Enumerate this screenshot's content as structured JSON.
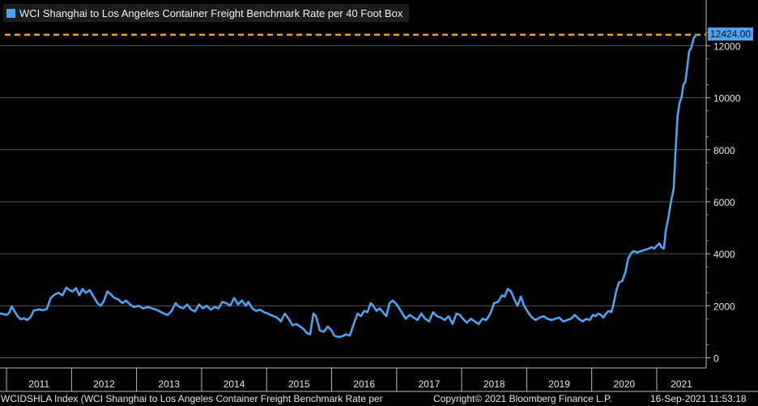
{
  "chart_data": {
    "type": "line",
    "title": "WCI Shanghai to Los Angeles Container Freight Benchmark Rate per 40 Foot Box",
    "ylim": [
      0,
      13000
    ],
    "yticks": [
      0,
      2000,
      4000,
      6000,
      8000,
      10000,
      12000
    ],
    "xlim": [
      2010.9,
      2021.76
    ],
    "year_labels": [
      "2011",
      "2012",
      "2013",
      "2014",
      "2015",
      "2016",
      "2017",
      "2018",
      "2019",
      "2020",
      "2021"
    ],
    "grid": true,
    "legend_position": "top-left",
    "last_value_label": "12424.00",
    "reference_line_value": 12424,
    "colors": {
      "line": "#4da3f2",
      "reference": "#f29b30",
      "background": "#000000",
      "grid": "#555555"
    },
    "series": [
      {
        "name": "WCI Shanghai to Los Angeles Container Freight Benchmark Rate per 40 Foot Box",
        "points": [
          [
            2010.91,
            1700
          ],
          [
            2010.95,
            1680
          ],
          [
            2011.0,
            1650
          ],
          [
            2011.04,
            1720
          ],
          [
            2011.08,
            1980
          ],
          [
            2011.12,
            1800
          ],
          [
            2011.17,
            1600
          ],
          [
            2011.22,
            1480
          ],
          [
            2011.27,
            1520
          ],
          [
            2011.32,
            1450
          ],
          [
            2011.37,
            1560
          ],
          [
            2011.42,
            1820
          ],
          [
            2011.5,
            1860
          ],
          [
            2011.56,
            1830
          ],
          [
            2011.62,
            1880
          ],
          [
            2011.68,
            2300
          ],
          [
            2011.75,
            2450
          ],
          [
            2011.8,
            2500
          ],
          [
            2011.86,
            2400
          ],
          [
            2011.92,
            2700
          ],
          [
            2011.97,
            2600
          ],
          [
            2012.02,
            2550
          ],
          [
            2012.07,
            2680
          ],
          [
            2012.12,
            2400
          ],
          [
            2012.17,
            2650
          ],
          [
            2012.22,
            2500
          ],
          [
            2012.28,
            2600
          ],
          [
            2012.34,
            2350
          ],
          [
            2012.4,
            2100
          ],
          [
            2012.45,
            2000
          ],
          [
            2012.5,
            2200
          ],
          [
            2012.55,
            2550
          ],
          [
            2012.6,
            2450
          ],
          [
            2012.66,
            2300
          ],
          [
            2012.72,
            2250
          ],
          [
            2012.78,
            2100
          ],
          [
            2012.84,
            2200
          ],
          [
            2012.9,
            2050
          ],
          [
            2012.96,
            1950
          ],
          [
            2013.03,
            2000
          ],
          [
            2013.1,
            1900
          ],
          [
            2013.17,
            1950
          ],
          [
            2013.24,
            1900
          ],
          [
            2013.3,
            1850
          ],
          [
            2013.36,
            1780
          ],
          [
            2013.42,
            1700
          ],
          [
            2013.48,
            1650
          ],
          [
            2013.54,
            1800
          ],
          [
            2013.6,
            2100
          ],
          [
            2013.66,
            1950
          ],
          [
            2013.72,
            1900
          ],
          [
            2013.78,
            2050
          ],
          [
            2013.84,
            1850
          ],
          [
            2013.9,
            1780
          ],
          [
            2013.96,
            2050
          ],
          [
            2014.02,
            1900
          ],
          [
            2014.08,
            2000
          ],
          [
            2014.14,
            1850
          ],
          [
            2014.2,
            1950
          ],
          [
            2014.26,
            1900
          ],
          [
            2014.32,
            2150
          ],
          [
            2014.38,
            2100
          ],
          [
            2014.44,
            2000
          ],
          [
            2014.5,
            2300
          ],
          [
            2014.56,
            2050
          ],
          [
            2014.62,
            2200
          ],
          [
            2014.68,
            2000
          ],
          [
            2014.72,
            2150
          ],
          [
            2014.78,
            1900
          ],
          [
            2014.84,
            1800
          ],
          [
            2014.9,
            1850
          ],
          [
            2014.96,
            1750
          ],
          [
            2015.02,
            1700
          ],
          [
            2015.06,
            1650
          ],
          [
            2015.11,
            1600
          ],
          [
            2015.16,
            1550
          ],
          [
            2015.22,
            1400
          ],
          [
            2015.28,
            1700
          ],
          [
            2015.34,
            1500
          ],
          [
            2015.4,
            1250
          ],
          [
            2015.46,
            1300
          ],
          [
            2015.52,
            1200
          ],
          [
            2015.57,
            1100
          ],
          [
            2015.62,
            950
          ],
          [
            2015.67,
            900
          ],
          [
            2015.72,
            1700
          ],
          [
            2015.76,
            1600
          ],
          [
            2015.82,
            1050
          ],
          [
            2015.88,
            1000
          ],
          [
            2015.94,
            1200
          ],
          [
            2016.0,
            1050
          ],
          [
            2016.04,
            850
          ],
          [
            2016.1,
            800
          ],
          [
            2016.16,
            820
          ],
          [
            2016.22,
            900
          ],
          [
            2016.28,
            850
          ],
          [
            2016.34,
            1300
          ],
          [
            2016.4,
            1700
          ],
          [
            2016.45,
            1600
          ],
          [
            2016.5,
            1800
          ],
          [
            2016.55,
            1750
          ],
          [
            2016.6,
            2100
          ],
          [
            2016.64,
            2000
          ],
          [
            2016.69,
            1800
          ],
          [
            2016.74,
            1900
          ],
          [
            2016.79,
            1750
          ],
          [
            2016.84,
            1600
          ],
          [
            2016.89,
            2100
          ],
          [
            2016.94,
            2200
          ],
          [
            2017.0,
            2050
          ],
          [
            2017.04,
            1900
          ],
          [
            2017.09,
            1700
          ],
          [
            2017.14,
            1500
          ],
          [
            2017.2,
            1650
          ],
          [
            2017.26,
            1550
          ],
          [
            2017.32,
            1450
          ],
          [
            2017.38,
            1700
          ],
          [
            2017.44,
            1500
          ],
          [
            2017.5,
            1400
          ],
          [
            2017.56,
            1750
          ],
          [
            2017.62,
            1600
          ],
          [
            2017.68,
            1550
          ],
          [
            2017.74,
            1450
          ],
          [
            2017.8,
            1600
          ],
          [
            2017.86,
            1300
          ],
          [
            2017.92,
            1700
          ],
          [
            2017.97,
            1650
          ],
          [
            2018.02,
            1500
          ],
          [
            2018.08,
            1350
          ],
          [
            2018.14,
            1500
          ],
          [
            2018.2,
            1400
          ],
          [
            2018.26,
            1300
          ],
          [
            2018.32,
            1500
          ],
          [
            2018.38,
            1450
          ],
          [
            2018.44,
            1700
          ],
          [
            2018.5,
            2100
          ],
          [
            2018.56,
            2150
          ],
          [
            2018.62,
            2400
          ],
          [
            2018.66,
            2350
          ],
          [
            2018.71,
            2650
          ],
          [
            2018.76,
            2550
          ],
          [
            2018.81,
            2250
          ],
          [
            2018.86,
            2000
          ],
          [
            2018.91,
            2350
          ],
          [
            2018.96,
            2000
          ],
          [
            2019.02,
            1750
          ],
          [
            2019.08,
            1550
          ],
          [
            2019.14,
            1450
          ],
          [
            2019.2,
            1550
          ],
          [
            2019.26,
            1600
          ],
          [
            2019.32,
            1500
          ],
          [
            2019.38,
            1450
          ],
          [
            2019.44,
            1500
          ],
          [
            2019.5,
            1550
          ],
          [
            2019.56,
            1400
          ],
          [
            2019.62,
            1450
          ],
          [
            2019.68,
            1500
          ],
          [
            2019.74,
            1650
          ],
          [
            2019.8,
            1500
          ],
          [
            2019.86,
            1400
          ],
          [
            2019.92,
            1500
          ],
          [
            2019.97,
            1450
          ],
          [
            2020.02,
            1650
          ],
          [
            2020.06,
            1600
          ],
          [
            2020.1,
            1700
          ],
          [
            2020.14,
            1650
          ],
          [
            2020.18,
            1550
          ],
          [
            2020.22,
            1700
          ],
          [
            2020.26,
            1800
          ],
          [
            2020.3,
            1750
          ],
          [
            2020.33,
            2000
          ],
          [
            2020.38,
            2600
          ],
          [
            2020.42,
            2900
          ],
          [
            2020.47,
            2950
          ],
          [
            2020.52,
            3300
          ],
          [
            2020.56,
            3800
          ],
          [
            2020.6,
            4000
          ],
          [
            2020.64,
            4100
          ],
          [
            2020.7,
            4050
          ],
          [
            2020.76,
            4100
          ],
          [
            2020.82,
            4150
          ],
          [
            2020.88,
            4200
          ],
          [
            2020.92,
            4250
          ],
          [
            2020.96,
            4200
          ],
          [
            2021.0,
            4300
          ],
          [
            2021.04,
            4400
          ],
          [
            2021.07,
            4250
          ],
          [
            2021.11,
            4200
          ],
          [
            2021.14,
            4900
          ],
          [
            2021.18,
            5400
          ],
          [
            2021.22,
            6000
          ],
          [
            2021.26,
            6500
          ],
          [
            2021.29,
            8000
          ],
          [
            2021.32,
            9300
          ],
          [
            2021.35,
            9800
          ],
          [
            2021.38,
            10000
          ],
          [
            2021.41,
            10500
          ],
          [
            2021.44,
            10600
          ],
          [
            2021.47,
            11200
          ],
          [
            2021.5,
            11800
          ],
          [
            2021.53,
            11900
          ],
          [
            2021.57,
            12300
          ],
          [
            2021.61,
            12424
          ]
        ]
      }
    ]
  },
  "footer": {
    "left": "WCIDSHLA Index (WCI Shanghai to Los Angeles Container Freight Benchmark Rate per",
    "copyright": "Copyright© 2021 Bloomberg Finance L.P.",
    "timestamp": "16-Sep-2021 11:53:18"
  }
}
